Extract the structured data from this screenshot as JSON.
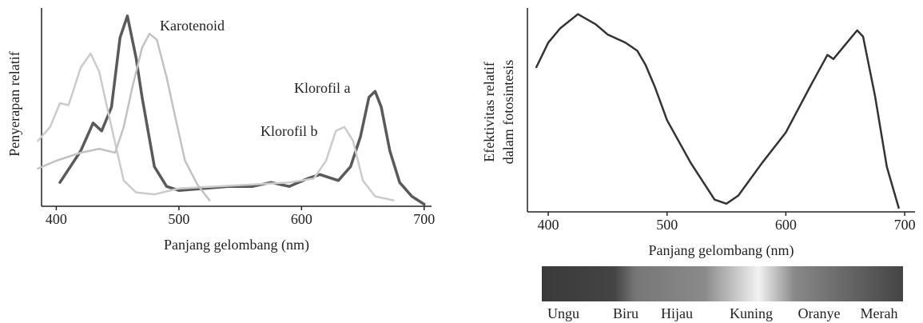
{
  "chart_data": [
    {
      "type": "line",
      "xlabel": "Panjang gelombang (nm)",
      "ylabel": "Penyerapan relatif",
      "xlim": [
        388,
        706
      ],
      "ylim": [
        0,
        100
      ],
      "xticks": [
        400,
        500,
        600,
        700
      ],
      "series": [
        {
          "name": "Klorofil a",
          "color": "#5a5a5a",
          "x": [
            403,
            420,
            430,
            437,
            445,
            452,
            458,
            465,
            470,
            480,
            490,
            500,
            520,
            540,
            560,
            575,
            590,
            605,
            615,
            630,
            640,
            648,
            655,
            660,
            665,
            672,
            680,
            690,
            700
          ],
          "values": [
            12,
            28,
            42,
            38,
            50,
            85,
            96,
            75,
            55,
            20,
            10,
            8,
            9,
            10,
            10,
            12,
            10,
            14,
            16,
            13,
            20,
            35,
            55,
            58,
            50,
            28,
            12,
            5,
            1
          ]
        },
        {
          "name": "Klorofil b",
          "color": "#cbcbcb",
          "x": [
            385,
            395,
            403,
            410,
            420,
            428,
            435,
            445,
            455,
            465,
            480,
            500,
            530,
            560,
            590,
            610,
            620,
            628,
            635,
            642,
            650,
            660,
            675
          ],
          "values": [
            33,
            40,
            52,
            51,
            70,
            77,
            68,
            40,
            13,
            7,
            6,
            9,
            10,
            11,
            12,
            14,
            23,
            38,
            40,
            33,
            13,
            5,
            3
          ]
        },
        {
          "name": "Karotenoid",
          "color": "#c2c2c2",
          "x": [
            385,
            400,
            420,
            435,
            448,
            455,
            462,
            470,
            476,
            482,
            490,
            497,
            505,
            515,
            525
          ],
          "values": [
            19,
            23,
            27,
            29,
            27,
            40,
            60,
            80,
            87,
            84,
            65,
            45,
            23,
            11,
            3
          ]
        }
      ]
    },
    {
      "type": "line",
      "xlabel": "Panjang gelombang (nm)",
      "ylabel": [
        "Efektivitas relatif",
        "dalam fotosintesis"
      ],
      "xlim": [
        382.5,
        708.7
      ],
      "ylim": [
        0,
        100
      ],
      "xticks": [
        400,
        500,
        600,
        700
      ],
      "series": [
        {
          "color": "#333333",
          "x": [
            390,
            400,
            410,
            425,
            440,
            450,
            465,
            475,
            482,
            490,
            500,
            520,
            540,
            550,
            560,
            580,
            600,
            620,
            635,
            640,
            650,
            660,
            665,
            675,
            685,
            695
          ],
          "values": [
            71,
            83,
            90,
            97,
            92,
            87,
            83,
            79,
            72,
            61,
            45,
            24,
            6,
            4,
            8,
            24,
            39,
            61,
            77,
            75,
            82,
            89,
            86,
            57,
            22,
            2
          ]
        }
      ],
      "spectrum_labels": [
        "Ungu",
        "Biru",
        "Hijau",
        "Kuning",
        "Oranye",
        "Merah"
      ]
    }
  ]
}
